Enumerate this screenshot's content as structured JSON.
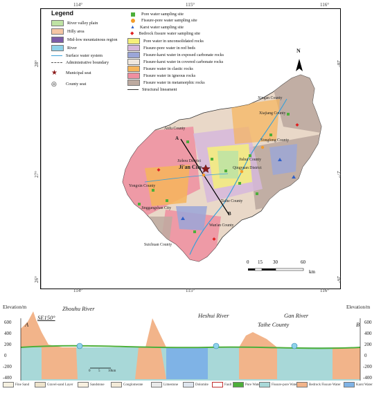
{
  "coords": {
    "top": [
      "114°",
      "115°",
      "116°"
    ],
    "bottom": [
      "114°",
      "115°",
      "116°"
    ],
    "left": [
      "28°",
      "27°",
      "26°"
    ],
    "right": [
      "28°",
      "27°",
      "26°"
    ]
  },
  "legend": {
    "title": "Legend",
    "left_items": [
      {
        "label": "River valley plain",
        "color": "#bfe3a4"
      },
      {
        "label": "Hilly area",
        "color": "#f5c6a4"
      },
      {
        "label": "Mid-low mountainous region",
        "color": "#7b5ca8"
      },
      {
        "label": "River",
        "color": "#8fd3ea"
      }
    ],
    "left_lines": [
      {
        "label": "Surface water system"
      },
      {
        "label": "Administrative boundary"
      }
    ],
    "seats": [
      {
        "label": "Municipal seat",
        "icon": "star-icon"
      },
      {
        "label": "County seat",
        "icon": "double-circle-icon"
      }
    ],
    "sites": [
      {
        "label": "Pore water sampling site",
        "icon": "green-square",
        "color": "#4daf3a"
      },
      {
        "label": "Fissure-pore water sampling site",
        "icon": "orange-circle",
        "color": "#f39c2b"
      },
      {
        "label": "Karst water sampling site",
        "icon": "blue-triangle",
        "color": "#3060c8"
      },
      {
        "label": "Bedrock fissure water sampling site",
        "icon": "red-diamond",
        "color": "#e02020"
      }
    ],
    "aquifers": [
      {
        "label": "Pore water in unconsolidated rocks",
        "color": "#f5f07a"
      },
      {
        "label": "Fissure-pore water in red beds",
        "color": "#d6b8dc"
      },
      {
        "label": "Fissure-karst water in exposed carbonate rocks",
        "color": "#9aa6d8"
      },
      {
        "label": "Fissure-karst water in covered carbonate rocks",
        "color": "#efe6dc"
      },
      {
        "label": "Fissure water in clastic rocks",
        "color": "#f6b55a"
      },
      {
        "label": "Fissure water in igneous rocks",
        "color": "#ef8fa0"
      },
      {
        "label": "Fissure water in metamorphic rocks",
        "color": "#bdaaa0"
      }
    ],
    "structural": "Structural lineament"
  },
  "places": {
    "municipal": "Ji'an City",
    "counties": [
      "Xingan County",
      "Xiajiang County",
      "Yongfeng County",
      "Anfu County",
      "Jizhou District",
      "Qingyuan District",
      "Jishui County",
      "Yongxin County",
      "Jinggangshan City",
      "Taihe County",
      "Wan'an County",
      "Suichuan County"
    ],
    "section_a": "A",
    "section_b": "B"
  },
  "compass": "N",
  "scale": {
    "ticks": [
      "0",
      "15",
      "30",
      "60"
    ],
    "unit": "km"
  },
  "section": {
    "elev_left": "Elevation/m",
    "elev_right": "Elevation/m",
    "ticks": [
      "600",
      "400",
      "200",
      "0",
      "-200",
      "-400"
    ],
    "a": "A",
    "b": "B",
    "direction": "SE150°",
    "rivers": [
      "Zhouhu River",
      "Heshui River",
      "Gan River"
    ],
    "county": "Taihe County",
    "scalebar": [
      "0",
      "5",
      "10km"
    ],
    "legend": [
      "Fine Sand",
      "Gravel-sand Layer",
      "Sandstone",
      "Conglomerate",
      "Limestone",
      "Dolomite",
      "Fault",
      "Pore Water",
      "Fissure-pore Water",
      "Bedrock Fissure Water",
      "Karst Water"
    ]
  }
}
